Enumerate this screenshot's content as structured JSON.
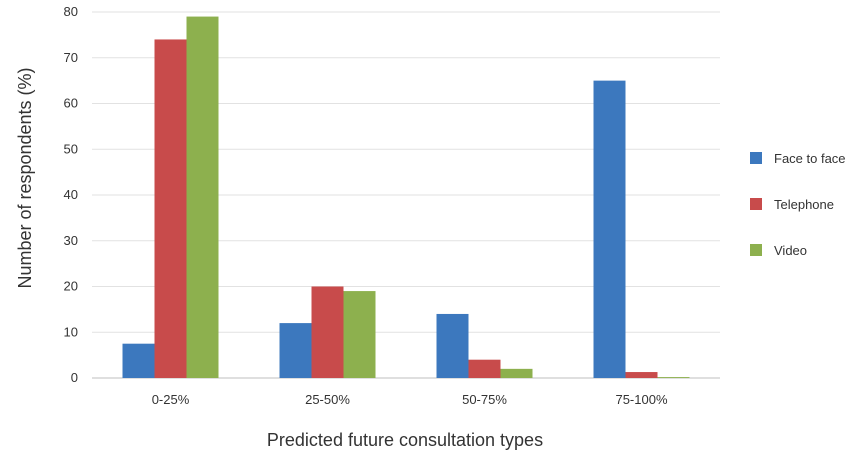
{
  "chart_data": {
    "type": "bar",
    "title": "",
    "xlabel": "Predicted future consultation types",
    "ylabel": "Number of respondents (%)",
    "ylim": [
      0,
      80
    ],
    "yticks": [
      0,
      10,
      20,
      30,
      40,
      50,
      60,
      70,
      80
    ],
    "grid": true,
    "legend_position": "right",
    "categories": [
      "0-25%",
      "25-50%",
      "50-75%",
      "75-100%"
    ],
    "series": [
      {
        "name": "Face to face",
        "color": "#3C78BE",
        "values": [
          7.5,
          12,
          14,
          65
        ]
      },
      {
        "name": "Telephone",
        "color": "#C84B4B",
        "values": [
          74,
          20,
          4,
          1.3
        ]
      },
      {
        "name": "Video",
        "color": "#8DB04E",
        "values": [
          79,
          19,
          2,
          0.2
        ]
      }
    ]
  }
}
